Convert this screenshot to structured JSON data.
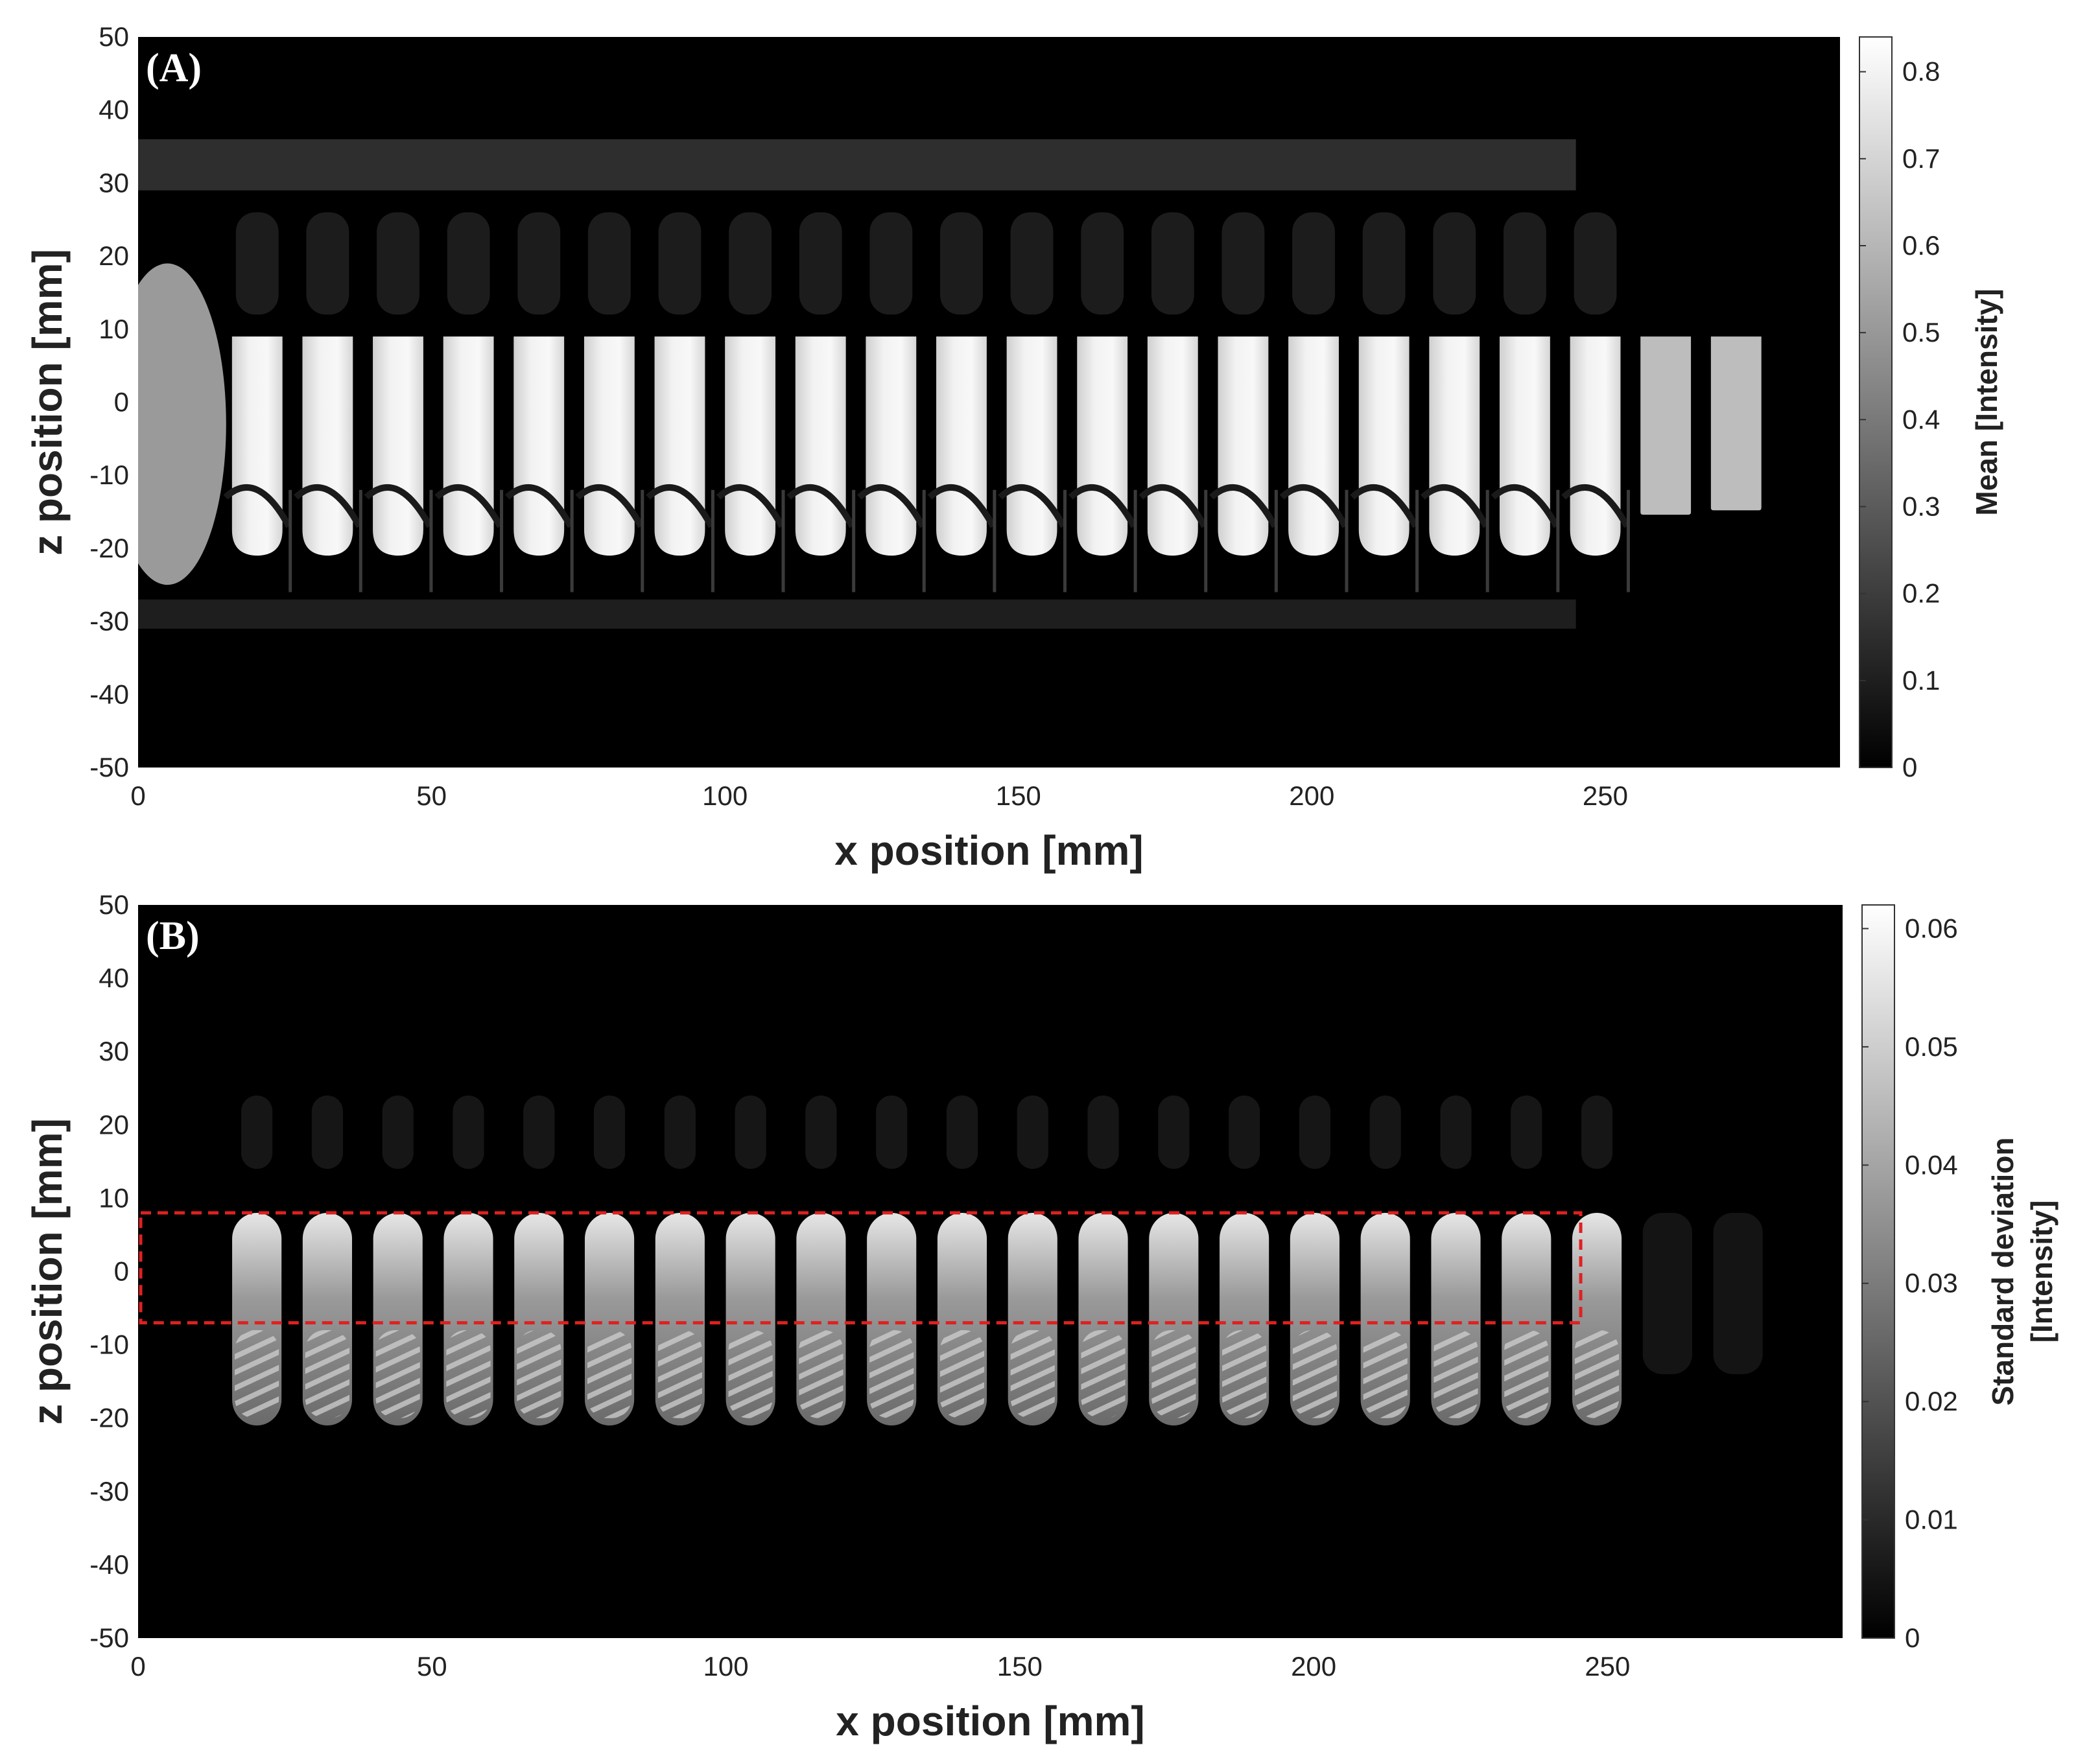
{
  "chart_data": [
    {
      "type": "heatmap",
      "panel_label": "(A)",
      "xlabel": "x position [mm]",
      "ylabel": "z position [mm]",
      "xlim": [
        0,
        290
      ],
      "ylim": [
        -50,
        50
      ],
      "xticks": [
        "0",
        "50",
        "100",
        "150",
        "200",
        "250"
      ],
      "yticks": [
        "50",
        "40",
        "30",
        "20",
        "10",
        "0",
        "-10",
        "-20",
        "-30",
        "-40",
        "-50"
      ],
      "colorbar": {
        "label": "Mean [Intensity]",
        "range": [
          0,
          0.84
        ],
        "ticks": [
          "0.8",
          "0.7",
          "0.6",
          "0.5",
          "0.4",
          "0.3",
          "0.2",
          "0.1",
          "0"
        ],
        "colormap": "gray"
      },
      "features": {
        "bright_blocks_count": 22,
        "bright_band_z": [
          -21,
          9
        ],
        "upper_band_z": [
          29,
          36
        ],
        "lower_band_z": [
          -31,
          -27
        ],
        "structure_x_end": 245
      }
    },
    {
      "type": "heatmap",
      "panel_label": "(B)",
      "xlabel": "x position [mm]",
      "ylabel": "z position [mm]",
      "xlim": [
        0,
        290
      ],
      "ylim": [
        -50,
        50
      ],
      "xticks": [
        "0",
        "50",
        "100",
        "150",
        "200",
        "250"
      ],
      "yticks": [
        "50",
        "40",
        "30",
        "20",
        "10",
        "0",
        "-10",
        "-20",
        "-30",
        "-40",
        "-50"
      ],
      "colorbar": {
        "label_line1": "Standard deviation",
        "label_line2": "[Intensity]",
        "range": [
          0,
          0.062
        ],
        "ticks": [
          "0.06",
          "0.05",
          "0.04",
          "0.03",
          "0.02",
          "0.01",
          "0"
        ],
        "colormap": "gray"
      },
      "highlight_box": {
        "x_range": [
          0,
          245
        ],
        "z_range": [
          -7,
          8
        ],
        "color": "#e02020",
        "style": "dashed"
      }
    }
  ]
}
